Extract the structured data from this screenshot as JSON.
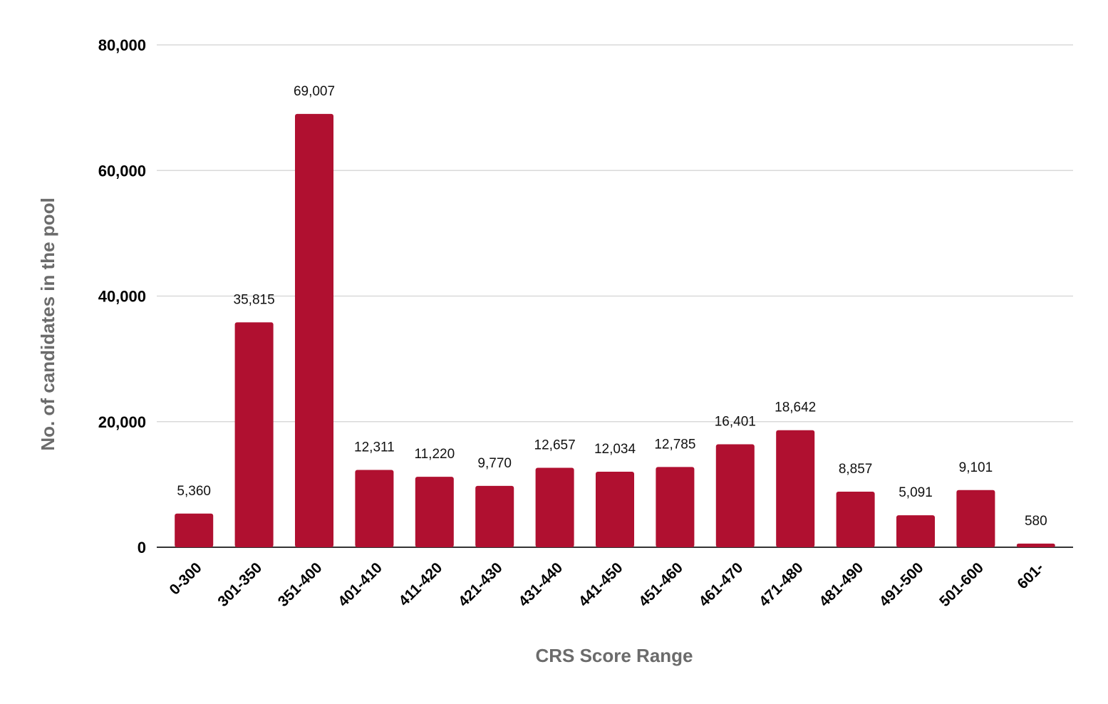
{
  "chart_data": {
    "type": "bar",
    "xlabel": "CRS Score Range",
    "ylabel": "No. of candidates in the pool",
    "ylim": [
      0,
      80000
    ],
    "yticks": [
      "0",
      "20,000",
      "40,000",
      "60,000",
      "80,000"
    ],
    "ytick_values": [
      0,
      20000,
      40000,
      60000,
      80000
    ],
    "grid": true,
    "bar_color": "#b01030",
    "categories": [
      "0-300",
      "301-350",
      "351-400",
      "401-410",
      "411-420",
      "421-430",
      "431-440",
      "441-450",
      "451-460",
      "461-470",
      "471-480",
      "481-490",
      "491-500",
      "501-600",
      "601-"
    ],
    "values": [
      5360,
      35815,
      69007,
      12311,
      11220,
      9770,
      12657,
      12034,
      12785,
      16401,
      18642,
      8857,
      5091,
      9101,
      580
    ],
    "data_labels": [
      "5,360",
      "35,815",
      "69,007",
      "12,311",
      "11,220",
      "9,770",
      "12,657",
      "12,034",
      "12,785",
      "16,401",
      "18,642",
      "8,857",
      "5,091",
      "9,101",
      "580"
    ]
  }
}
